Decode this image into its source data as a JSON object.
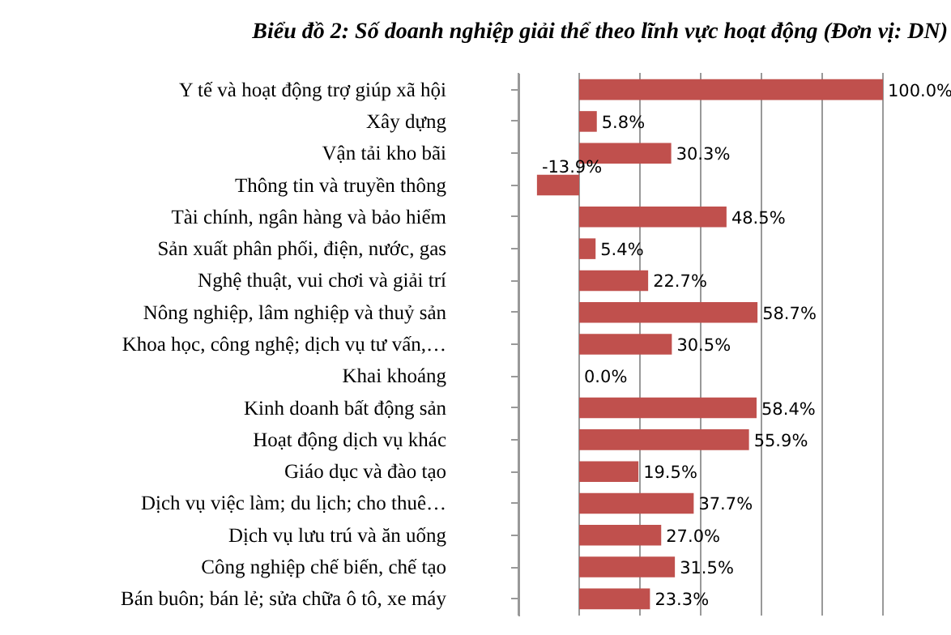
{
  "chart_data": {
    "type": "bar",
    "orientation": "horizontal",
    "title": "Biểu đồ 2: Số doanh nghiệp giải thể theo lĩnh vực hoạt động (Đơn vị: DN)",
    "categories": [
      "Y tế và hoạt động trợ giúp xã hội",
      "Xây dựng",
      "Vận tải kho bãi",
      "Thông tin và truyền thông",
      "Tài chính, ngân hàng và bảo hiểm",
      "Sản xuất phân phối, điện, nước, gas",
      "Nghệ thuật, vui chơi và giải trí",
      "Nông nghiệp, lâm nghiệp và thuỷ sản",
      "Khoa học, công nghệ; dịch vụ tư vấn,…",
      "Khai khoáng",
      "Kinh doanh bất động sản",
      "Hoạt động dịch vụ khác",
      "Giáo dục và đào tạo",
      "Dịch vụ việc làm; du lịch; cho thuê…",
      "Dịch vụ lưu trú và ăn uống",
      "Công nghiệp chế biến, chế tạo",
      "Bán buôn; bán lẻ; sửa chữa ô tô, xe máy"
    ],
    "values": [
      100.0,
      5.8,
      30.3,
      -13.9,
      48.5,
      5.4,
      22.7,
      58.7,
      30.5,
      0.0,
      58.4,
      55.9,
      19.5,
      37.7,
      27.0,
      31.5,
      23.3
    ],
    "value_labels": [
      "100.0%",
      "5.8%",
      "30.3%",
      "-13.9%",
      "48.5%",
      "5.4%",
      "22.7%",
      "58.7%",
      "30.5%",
      "0.0%",
      "58.4%",
      "55.9%",
      "19.5%",
      "37.7%",
      "27.0%",
      "31.5%",
      "23.3%"
    ],
    "color": "#c0504d",
    "xlim": [
      -20,
      100
    ],
    "xticks": [
      {
        "value": -20,
        "label": null
      },
      {
        "value": 0,
        "label": null
      },
      {
        "value": 20,
        "label": null
      },
      {
        "value": 40,
        "label": null
      },
      {
        "value": 60,
        "label": null
      },
      {
        "value": 80,
        "label": null
      },
      {
        "value": 100,
        "label": null
      }
    ],
    "grid": "x",
    "tick_labels": "y"
  }
}
